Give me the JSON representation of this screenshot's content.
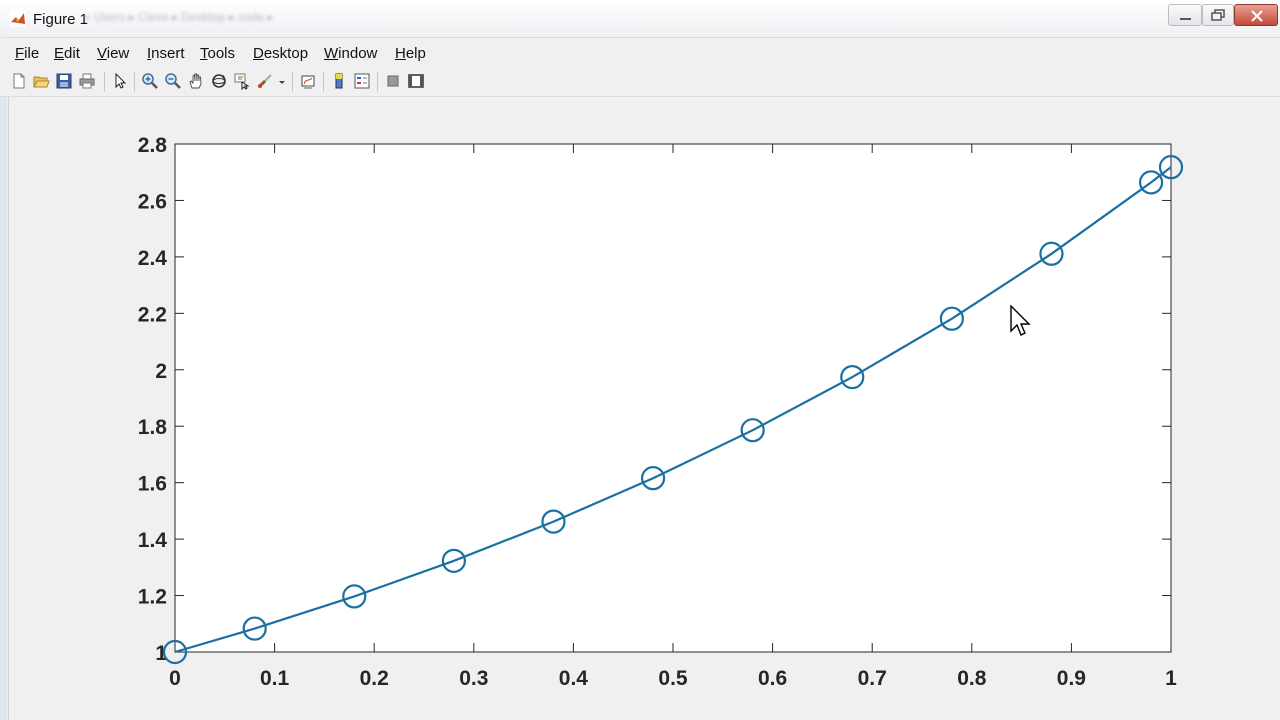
{
  "window": {
    "title": "Figure 1",
    "path": "« Users ▸ Cleve ▸ Desktop ▸ code ▸",
    "buttons": [
      "minimize-button",
      "maximize-button",
      "close-button"
    ]
  },
  "menu": [
    "File",
    "Edit",
    "View",
    "Insert",
    "Tools",
    "Desktop",
    "Window",
    "Help"
  ],
  "toolbar": {
    "icons": [
      "new-figure-icon",
      "open-file-icon",
      "save-icon",
      "print-icon",
      "select-arrow-icon",
      "zoom-in-icon",
      "zoom-out-icon",
      "pan-hand-icon",
      "rotate-3d-icon",
      "data-cursor-icon",
      "brush-icon",
      "link-plot-icon",
      "colorbar-icon",
      "legend-icon",
      "hide-plot-tools-icon",
      "show-plot-tools-icon"
    ]
  },
  "colors": {
    "series": "#1a6fa3",
    "axes_bg": "#ffffff",
    "figure_bg": "#f0f0f0"
  },
  "chart_data": {
    "type": "line",
    "title": "",
    "xlabel": "",
    "ylabel": "",
    "xlim": [
      0,
      1
    ],
    "ylim": [
      1,
      2.8
    ],
    "xticks": [
      0,
      0.1,
      0.2,
      0.3,
      0.4,
      0.5,
      0.6,
      0.7,
      0.8,
      0.9,
      1
    ],
    "xtick_labels": [
      "0",
      "0.1",
      "0.2",
      "0.3",
      "0.4",
      "0.5",
      "0.6",
      "0.7",
      "0.8",
      "0.9",
      "1"
    ],
    "yticks": [
      1,
      1.2,
      1.4,
      1.6,
      1.8,
      2,
      2.2,
      2.4,
      2.6,
      2.8
    ],
    "ytick_labels": [
      "1",
      "1.2",
      "1.4",
      "1.6",
      "1.8",
      "2",
      "2.2",
      "2.4",
      "2.6",
      "2.8"
    ],
    "grid": false,
    "marker": "circle",
    "series": [
      {
        "x": [
          0,
          0.08,
          0.18,
          0.28,
          0.38,
          0.48,
          0.58,
          0.68,
          0.78,
          0.88,
          0.98,
          1
        ],
        "values": [
          1.0,
          1.083,
          1.197,
          1.323,
          1.462,
          1.616,
          1.786,
          1.974,
          2.181,
          2.411,
          2.664,
          2.718
        ]
      }
    ]
  }
}
